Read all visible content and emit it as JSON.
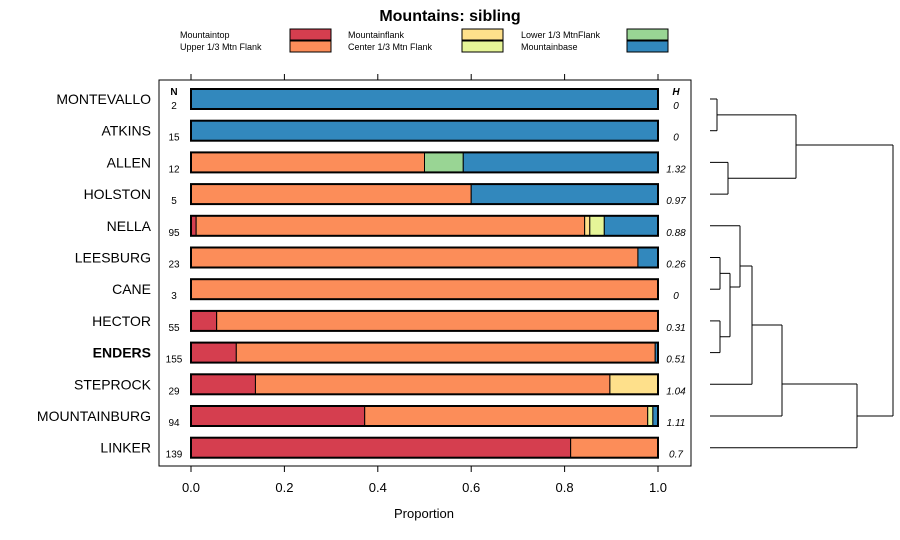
{
  "chart_data": {
    "type": "bar",
    "stacked": true,
    "orientation": "horizontal",
    "title": "Mountains: sibling",
    "xlabel": "Proportion",
    "ylabel": "",
    "xlim": [
      0,
      1
    ],
    "xticks": [
      "0.0",
      "0.2",
      "0.4",
      "0.6",
      "0.8",
      "1.0"
    ],
    "xtick_values": [
      0,
      0.2,
      0.4,
      0.6,
      0.8,
      1.0
    ],
    "n_header": "N",
    "h_header": "H",
    "legend": [
      {
        "name": "Mountaintop",
        "color": "#d53e4f"
      },
      {
        "name": "Upper 1/3 Mtn Flank",
        "color": "#fc8d59"
      },
      {
        "name": "Mountainflank",
        "color": "#fee08b"
      },
      {
        "name": "Center 1/3 Mtn Flank",
        "color": "#e6f598"
      },
      {
        "name": "Lower 1/3 MtnFlank",
        "color": "#99d594"
      },
      {
        "name": "Mountainbase",
        "color": "#3288bd"
      }
    ],
    "rows": [
      {
        "label": "MONTEVALLO",
        "n": "2",
        "h": "0",
        "bold": false,
        "values": [
          0,
          0,
          0,
          0,
          0,
          1.0
        ]
      },
      {
        "label": "ATKINS",
        "n": "15",
        "h": "0",
        "bold": false,
        "values": [
          0,
          0,
          0,
          0,
          0,
          1.0
        ]
      },
      {
        "label": "ALLEN",
        "n": "12",
        "h": "1.32",
        "bold": false,
        "values": [
          0,
          0.5,
          0,
          0,
          0.083,
          0.417
        ]
      },
      {
        "label": "HOLSTON",
        "n": "5",
        "h": "0.97",
        "bold": false,
        "values": [
          0,
          0.6,
          0,
          0,
          0,
          0.4
        ]
      },
      {
        "label": "NELLA",
        "n": "95",
        "h": "0.88",
        "bold": false,
        "values": [
          0.011,
          0.832,
          0.011,
          0.031,
          0,
          0.115
        ]
      },
      {
        "label": "LEESBURG",
        "n": "23",
        "h": "0.26",
        "bold": false,
        "values": [
          0,
          0.957,
          0,
          0,
          0,
          0.043
        ]
      },
      {
        "label": "CANE",
        "n": "3",
        "h": "0",
        "bold": false,
        "values": [
          0,
          1.0,
          0,
          0,
          0,
          0
        ]
      },
      {
        "label": "HECTOR",
        "n": "55",
        "h": "0.31",
        "bold": false,
        "values": [
          0.055,
          0.945,
          0,
          0,
          0,
          0
        ]
      },
      {
        "label": "ENDERS",
        "n": "155",
        "h": "0.51",
        "bold": true,
        "values": [
          0.097,
          0.897,
          0,
          0,
          0,
          0.006
        ]
      },
      {
        "label": "STEPROCK",
        "n": "29",
        "h": "1.04",
        "bold": false,
        "values": [
          0.138,
          0.759,
          0.103,
          0,
          0,
          0
        ]
      },
      {
        "label": "MOUNTAINBURG",
        "n": "94",
        "h": "1.11",
        "bold": false,
        "values": [
          0.372,
          0.606,
          0,
          0.011,
          0,
          0.011
        ]
      },
      {
        "label": "LINKER",
        "n": "139",
        "h": "0.7",
        "bold": false,
        "values": [
          0.813,
          0.187,
          0,
          0,
          0,
          0
        ]
      }
    ]
  }
}
